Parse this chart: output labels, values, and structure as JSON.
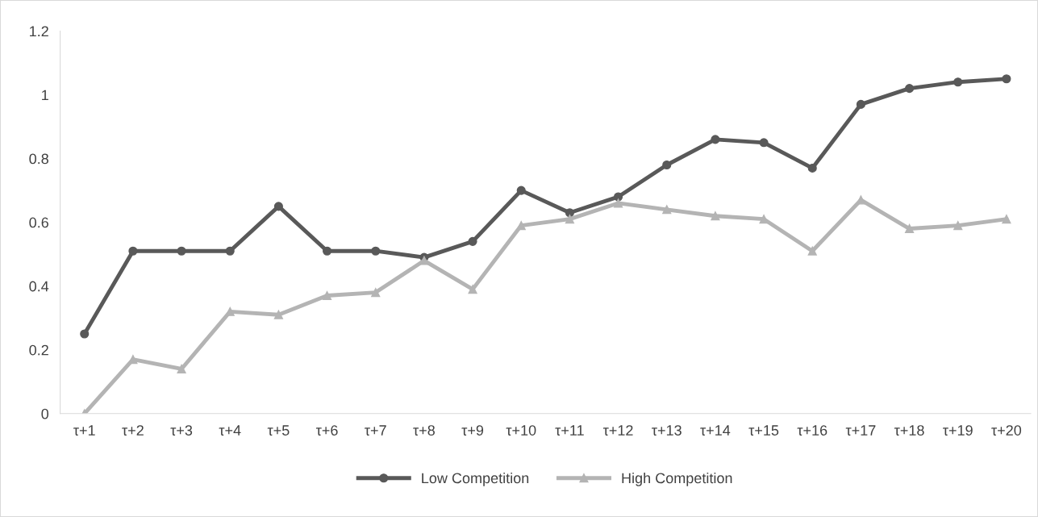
{
  "chart_data": {
    "type": "line",
    "categories": [
      "τ+1",
      "τ+2",
      "τ+3",
      "τ+4",
      "τ+5",
      "τ+6",
      "τ+7",
      "τ+8",
      "τ+9",
      "τ+10",
      "τ+11",
      "τ+12",
      "τ+13",
      "τ+14",
      "τ+15",
      "τ+16",
      "τ+17",
      "τ+18",
      "τ+19",
      "τ+20"
    ],
    "series": [
      {
        "name": "Low Competition",
        "color": "#595959",
        "marker": "circle",
        "values": [
          0.25,
          0.51,
          0.51,
          0.51,
          0.65,
          0.51,
          0.51,
          0.49,
          0.54,
          0.7,
          0.63,
          0.68,
          0.78,
          0.86,
          0.85,
          0.77,
          0.97,
          1.02,
          1.04,
          1.05
        ]
      },
      {
        "name": "High Competition",
        "color": "#b4b4b4",
        "marker": "triangle",
        "values": [
          0.0,
          0.17,
          0.14,
          0.32,
          0.31,
          0.37,
          0.38,
          0.48,
          0.39,
          0.59,
          0.61,
          0.66,
          0.64,
          0.62,
          0.61,
          0.51,
          0.67,
          0.58,
          0.59,
          0.61
        ]
      }
    ],
    "ylim": [
      0,
      1.2
    ],
    "yticks": [
      0,
      0.2,
      0.4,
      0.6,
      0.8,
      1,
      1.2
    ],
    "grid": false,
    "legend": "bottom",
    "line_style": "solid"
  }
}
